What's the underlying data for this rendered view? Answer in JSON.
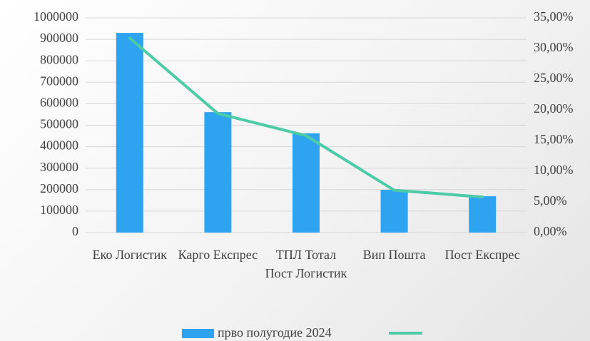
{
  "chart_data": {
    "type": "bar-line",
    "categories": [
      "Еко Логистик",
      "Карго Експрес",
      "ТПЛ Тотал Пост Логистик",
      "Вип Пошта",
      "Пост Експрес"
    ],
    "series": [
      {
        "name": "прво полугодие 2024",
        "type": "bar",
        "color": "#2ea3ef",
        "values": [
          930000,
          561000,
          462000,
          199000,
          169000
        ]
      },
      {
        "type": "line",
        "axis": "y2",
        "color": "#4ccba6",
        "values": [
          31.7,
          19.4,
          15.8,
          6.9,
          5.8
        ]
      }
    ],
    "ylim": [
      0,
      1000000
    ],
    "yticks": [
      0,
      100000,
      200000,
      300000,
      400000,
      500000,
      600000,
      700000,
      800000,
      900000,
      1000000
    ],
    "y2lim": [
      0,
      35
    ],
    "y2ticks": [
      {
        "value": 0,
        "label": "0,00%"
      },
      {
        "value": 5,
        "label": "5,00%"
      },
      {
        "value": 10,
        "label": "10,00%"
      },
      {
        "value": 15,
        "label": "15,00%"
      },
      {
        "value": 20,
        "label": "20,00%"
      },
      {
        "value": 25,
        "label": "25,00%"
      },
      {
        "value": 30,
        "label": "30,00%"
      },
      {
        "value": 35,
        "label": "35,00%"
      }
    ],
    "grid": true,
    "legend": "bottom"
  }
}
